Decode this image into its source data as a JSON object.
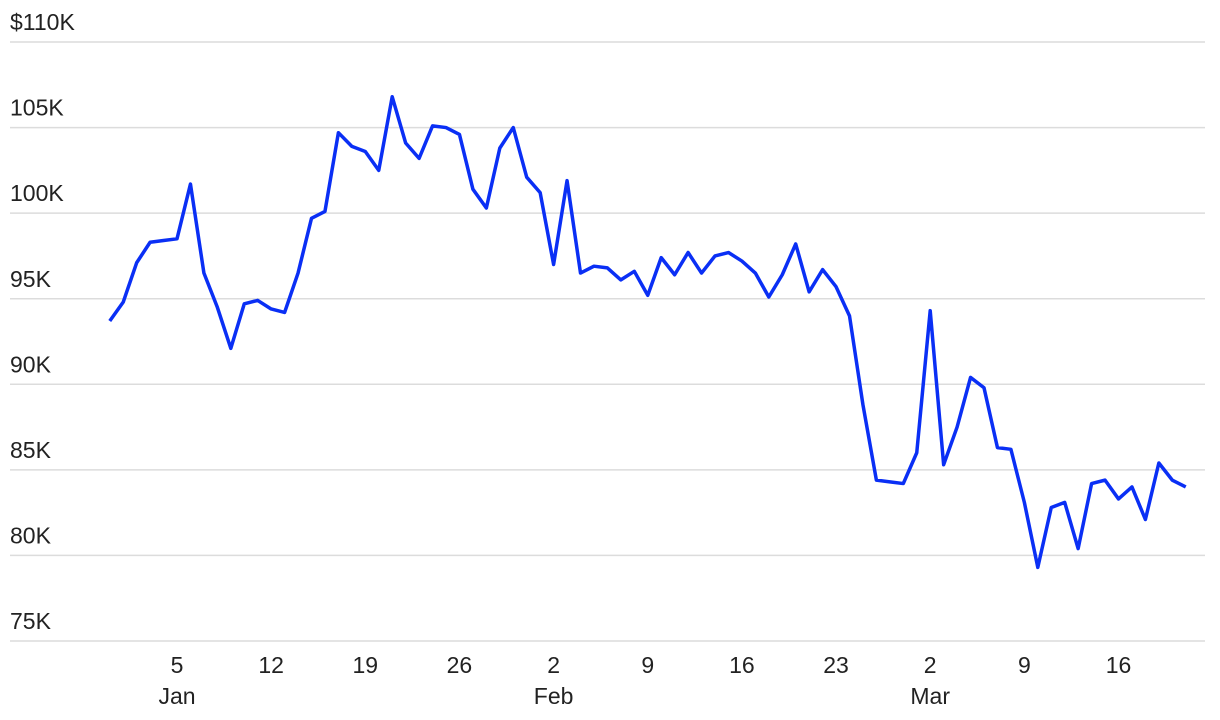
{
  "chart_data": {
    "type": "line",
    "categories": [
      null,
      null,
      null,
      null,
      null,
      {
        "label": "5",
        "month": "Jan"
      },
      null,
      null,
      null,
      null,
      null,
      null,
      {
        "label": "12"
      },
      null,
      null,
      null,
      null,
      null,
      null,
      {
        "label": "19"
      },
      null,
      null,
      null,
      null,
      null,
      null,
      {
        "label": "26"
      },
      null,
      null,
      null,
      null,
      null,
      null,
      {
        "label": "2",
        "month": "Feb"
      },
      null,
      null,
      null,
      null,
      null,
      null,
      {
        "label": "9"
      },
      null,
      null,
      null,
      null,
      null,
      null,
      {
        "label": "16"
      },
      null,
      null,
      null,
      null,
      null,
      null,
      {
        "label": "23"
      },
      null,
      null,
      null,
      null,
      null,
      null,
      {
        "label": "2",
        "month": "Mar"
      },
      null,
      null,
      null,
      null,
      null,
      null,
      {
        "label": "9"
      },
      null,
      null,
      null,
      null,
      null,
      null,
      {
        "label": "16"
      },
      null,
      null,
      null,
      null,
      null
    ],
    "values": [
      93700,
      94800,
      97100,
      98300,
      98400,
      98500,
      101700,
      96500,
      94500,
      92100,
      94700,
      94900,
      94400,
      94200,
      96500,
      99700,
      100100,
      104700,
      103900,
      103600,
      102500,
      106800,
      104100,
      103200,
      105100,
      105000,
      104600,
      101400,
      100300,
      103800,
      105000,
      102100,
      101200,
      97000,
      101900,
      96500,
      96900,
      96800,
      96100,
      96600,
      95200,
      97400,
      96400,
      97700,
      96500,
      97500,
      97700,
      97200,
      96500,
      95100,
      96400,
      98200,
      95400,
      96700,
      95700,
      94000,
      88800,
      84400,
      84300,
      84200,
      86000,
      94300,
      85300,
      87500,
      90400,
      89800,
      86300,
      86200,
      83100,
      79300,
      82800,
      83100,
      80400,
      84200,
      84400,
      83300,
      84000,
      82100,
      85400,
      84400,
      84000
    ],
    "color": "#0a2ff5",
    "ylim": [
      75000,
      110000
    ],
    "yticks": [
      {
        "value": 75000,
        "label": "75K"
      },
      {
        "value": 80000,
        "label": "80K"
      },
      {
        "value": 85000,
        "label": "85K"
      },
      {
        "value": 90000,
        "label": "90K"
      },
      {
        "value": 95000,
        "label": "95K"
      },
      {
        "value": 100000,
        "label": "100K"
      },
      {
        "value": 105000,
        "label": "105K"
      },
      {
        "value": 110000,
        "label": "$110K"
      }
    ],
    "grid": true
  }
}
